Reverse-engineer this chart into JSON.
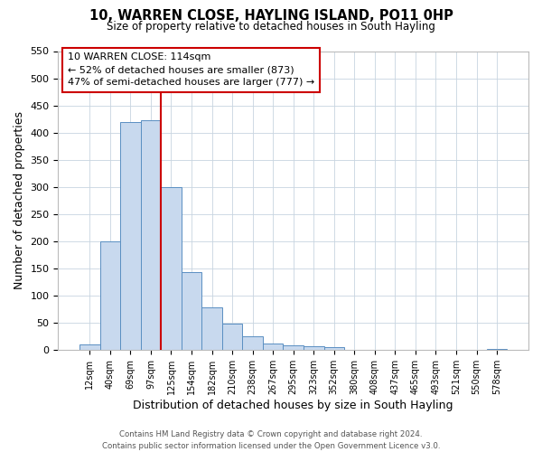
{
  "title": "10, WARREN CLOSE, HAYLING ISLAND, PO11 0HP",
  "subtitle": "Size of property relative to detached houses in South Hayling",
  "xlabel": "Distribution of detached houses by size in South Hayling",
  "ylabel": "Number of detached properties",
  "bar_labels": [
    "12sqm",
    "40sqm",
    "69sqm",
    "97sqm",
    "125sqm",
    "154sqm",
    "182sqm",
    "210sqm",
    "238sqm",
    "267sqm",
    "295sqm",
    "323sqm",
    "352sqm",
    "380sqm",
    "408sqm",
    "437sqm",
    "465sqm",
    "493sqm",
    "521sqm",
    "550sqm",
    "578sqm"
  ],
  "bar_values": [
    10,
    200,
    420,
    423,
    300,
    143,
    78,
    48,
    25,
    13,
    9,
    8,
    5,
    1,
    0,
    0,
    0,
    0,
    0,
    0,
    3
  ],
  "bar_color": "#c8d9ee",
  "bar_edge_color": "#5a8fc2",
  "vline_color": "#cc0000",
  "vline_x_index": 4,
  "ylim": [
    0,
    550
  ],
  "yticks": [
    0,
    50,
    100,
    150,
    200,
    250,
    300,
    350,
    400,
    450,
    500,
    550
  ],
  "annotation_title": "10 WARREN CLOSE: 114sqm",
  "annotation_line1": "← 52% of detached houses are smaller (873)",
  "annotation_line2": "47% of semi-detached houses are larger (777) →",
  "annotation_box_color": "#ffffff",
  "annotation_box_edge": "#cc0000",
  "footer_line1": "Contains HM Land Registry data © Crown copyright and database right 2024.",
  "footer_line2": "Contains public sector information licensed under the Open Government Licence v3.0.",
  "bg_color": "#ffffff",
  "grid_color": "#c8d4e0"
}
